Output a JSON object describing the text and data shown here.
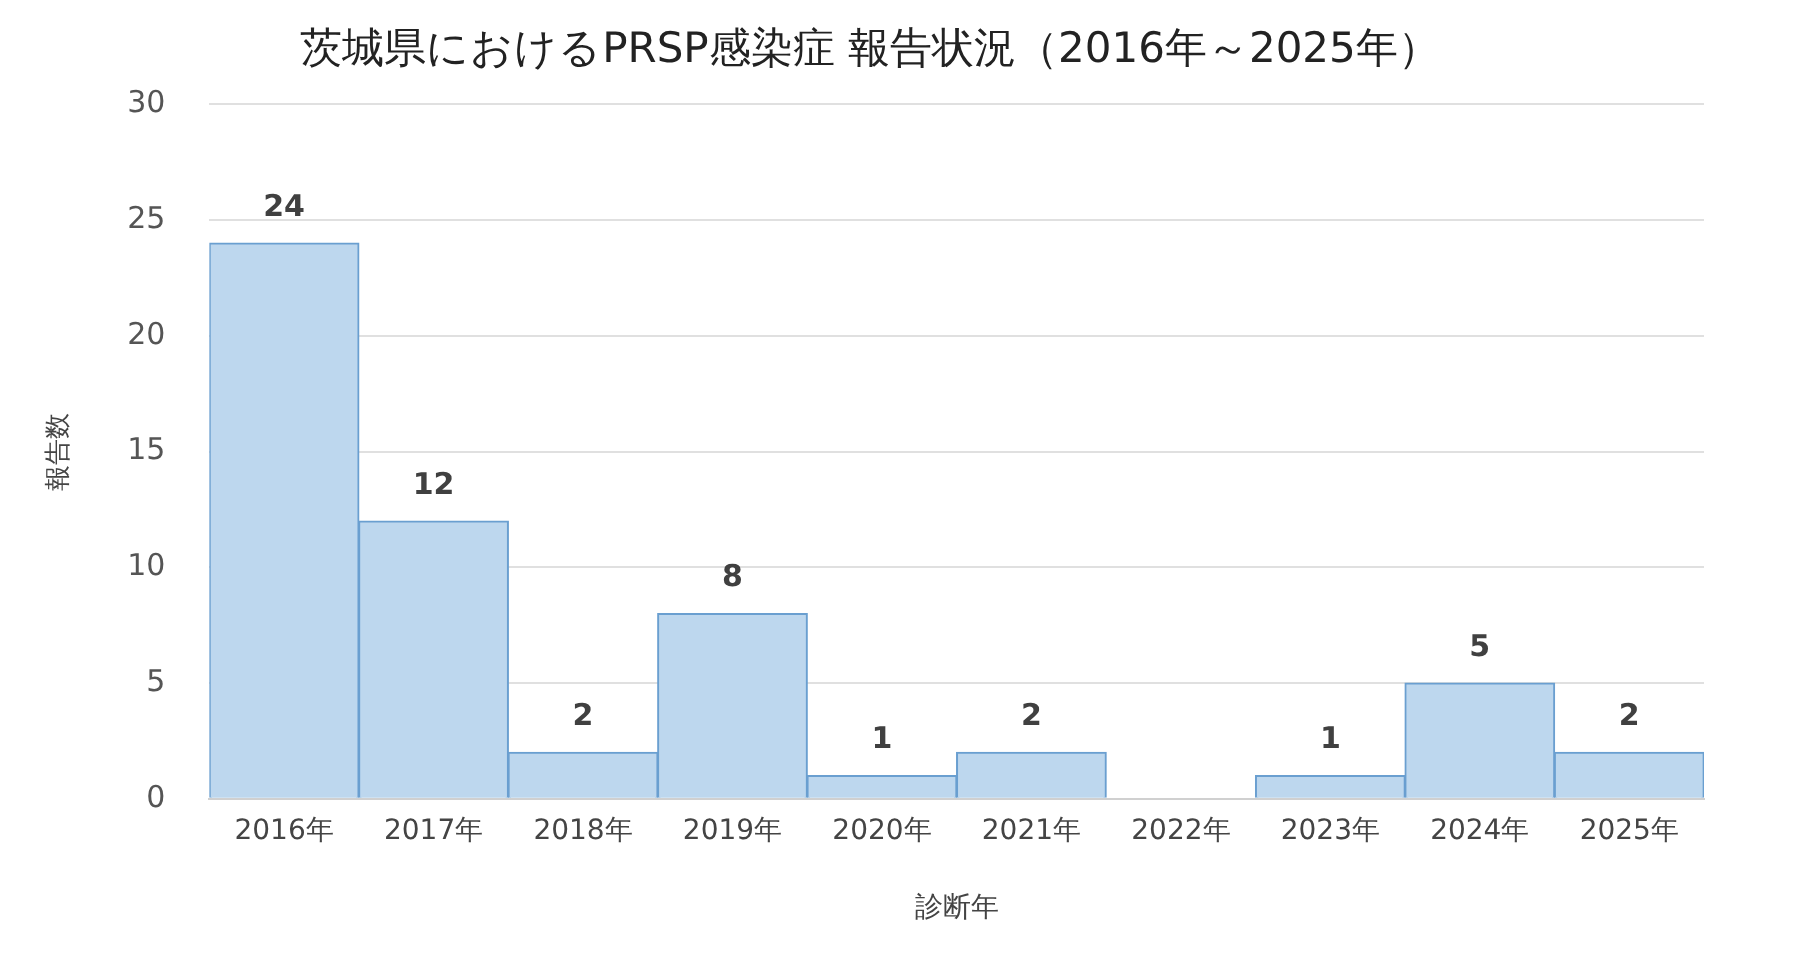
{
  "chart_data": {
    "type": "bar",
    "title": "茨城県におけるPRSP感染症 報告状況（2016年～2025年）",
    "xlabel": "診断年",
    "ylabel": "報告数",
    "categories": [
      "2016年",
      "2017年",
      "2018年",
      "2019年",
      "2020年",
      "2021年",
      "2022年",
      "2023年",
      "2024年",
      "2025年"
    ],
    "values": [
      24,
      12,
      2,
      8,
      1,
      2,
      0,
      1,
      5,
      2
    ],
    "value_labels": [
      "24",
      "12",
      "2",
      "8",
      "1",
      "2",
      null,
      "1",
      "5",
      "2"
    ],
    "color": "#bdd7ee",
    "ylim": [
      0,
      30
    ],
    "yticks": [
      0,
      5,
      10,
      15,
      20,
      25,
      30
    ],
    "grid": "y"
  }
}
